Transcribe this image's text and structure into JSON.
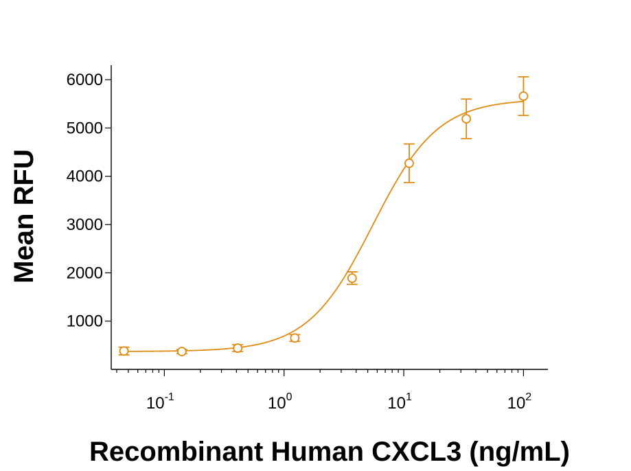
{
  "chart_data": {
    "type": "scatter",
    "xlabel": "Recombinant Human CXCL3 (ng/mL)",
    "ylabel": "Mean RFU",
    "x_scale": "log",
    "xlim": [
      0.036,
      160
    ],
    "ylim": [
      0,
      6300
    ],
    "x_ticks": [
      {
        "value": 0.1,
        "base": "10",
        "exp": "-1"
      },
      {
        "value": 1,
        "base": "10",
        "exp": "0"
      },
      {
        "value": 10,
        "base": "10",
        "exp": "1"
      },
      {
        "value": 100,
        "base": "10",
        "exp": "2"
      }
    ],
    "y_ticks": [
      1000,
      2000,
      3000,
      4000,
      5000,
      6000
    ],
    "y_tick_labels": [
      "1000",
      "2000",
      "3000",
      "4000",
      "5000",
      "6000"
    ],
    "grid": false,
    "color": "#E08A12",
    "series": [
      {
        "x": [
          0.046,
          0.14,
          0.41,
          1.23,
          3.7,
          11.1,
          33.3,
          100
        ],
        "y": [
          380,
          370,
          440,
          650,
          1890,
          4270,
          5190,
          5660
        ],
        "error": [
          80,
          40,
          70,
          70,
          130,
          400,
          410,
          400
        ]
      }
    ],
    "fit_curve": {
      "model": "4PL",
      "bottom": 370,
      "top": 5600,
      "ec50": 5.5,
      "hill": 1.6
    }
  }
}
